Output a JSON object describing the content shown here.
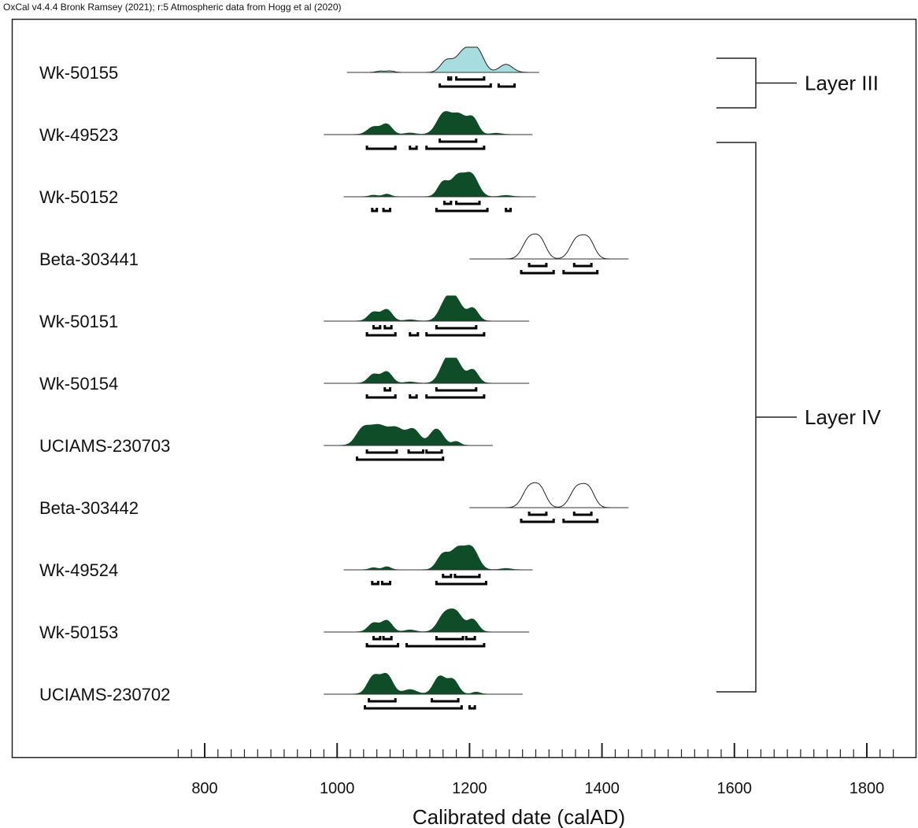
{
  "header": "OxCal v4.4.4 Bronk Ramsey (2021); r:5 Atmospheric data from Hogg et al (2020)",
  "chart_data": {
    "type": "area",
    "xlabel": "Calibrated date (calAD)",
    "xlim": [
      695,
      1875
    ],
    "xticks": [
      800,
      1000,
      1200,
      1400,
      1600,
      1800
    ],
    "minor_tick_step": 20,
    "samples": [
      {
        "name": "Wk-50155",
        "fill": "#a8dde0",
        "outline": "#222222",
        "range": [
          1015,
          1305
        ],
        "peaks": [
          [
            1065,
            0.05,
            6
          ],
          [
            1080,
            0.06,
            6
          ],
          [
            1165,
            0.45,
            9
          ],
          [
            1192,
            0.85,
            12
          ],
          [
            1212,
            0.78,
            10
          ],
          [
            1255,
            0.32,
            10
          ]
        ],
        "brackets": [
          [
            [
              1168,
              1172
            ],
            [
              1180,
              1222
            ]
          ],
          [
            [
              1155,
              1232
            ],
            [
              1244,
              1268
            ]
          ]
        ]
      },
      {
        "name": "Wk-49523",
        "fill": "#0e4d27",
        "outline": "#0e4d27",
        "range": [
          980,
          1295
        ],
        "peaks": [
          [
            1055,
            0.3,
            9
          ],
          [
            1075,
            0.4,
            8
          ],
          [
            1110,
            0.06,
            8
          ],
          [
            1162,
            0.85,
            11
          ],
          [
            1185,
            0.72,
            10
          ],
          [
            1205,
            0.62,
            8
          ],
          [
            1240,
            0.05,
            8
          ]
        ],
        "brackets": [
          [
            [
              1155,
              1210
            ]
          ],
          [
            [
              1045,
              1088
            ],
            [
              1110,
              1120
            ],
            [
              1135,
              1222
            ]
          ]
        ]
      },
      {
        "name": "Wk-50152",
        "fill": "#0e4d27",
        "outline": "#0e4d27",
        "range": [
          1010,
          1300
        ],
        "peaks": [
          [
            1055,
            0.06,
            6
          ],
          [
            1075,
            0.1,
            6
          ],
          [
            1160,
            0.55,
            8
          ],
          [
            1182,
            0.8,
            10
          ],
          [
            1203,
            0.85,
            10
          ],
          [
            1255,
            0.05,
            8
          ]
        ],
        "brackets": [
          [
            [
              1162,
              1172
            ],
            [
              1180,
              1215
            ]
          ],
          [
            [
              1053,
              1060
            ],
            [
              1070,
              1080
            ],
            [
              1150,
              1227
            ],
            [
              1255,
              1262
            ]
          ]
        ]
      },
      {
        "name": "Beta-303441",
        "fill": "#ffffff",
        "outline": "#222222",
        "range": [
          1200,
          1440
        ],
        "peaks": [
          [
            1290,
            0.78,
            10
          ],
          [
            1307,
            0.7,
            9
          ],
          [
            1362,
            0.78,
            10
          ],
          [
            1380,
            0.72,
            9
          ]
        ],
        "brackets": [
          [
            [
              1290,
              1316
            ],
            [
              1358,
              1384
            ]
          ],
          [
            [
              1278,
              1327
            ],
            [
              1342,
              1393
            ]
          ]
        ]
      },
      {
        "name": "Wk-50151",
        "fill": "#0e4d27",
        "outline": "#0e4d27",
        "range": [
          980,
          1290
        ],
        "peaks": [
          [
            1055,
            0.35,
            8
          ],
          [
            1075,
            0.45,
            8
          ],
          [
            1110,
            0.05,
            8
          ],
          [
            1165,
            0.75,
            10
          ],
          [
            1180,
            0.72,
            10
          ],
          [
            1205,
            0.5,
            8
          ]
        ],
        "brackets": [
          [
            [
              1055,
              1065
            ],
            [
              1072,
              1082
            ],
            [
              1150,
              1210
            ]
          ],
          [
            [
              1045,
              1088
            ],
            [
              1110,
              1122
            ],
            [
              1135,
              1222
            ]
          ]
        ]
      },
      {
        "name": "Wk-50154",
        "fill": "#0e4d27",
        "outline": "#0e4d27",
        "range": [
          980,
          1290
        ],
        "peaks": [
          [
            1055,
            0.35,
            8
          ],
          [
            1075,
            0.45,
            8
          ],
          [
            1110,
            0.05,
            8
          ],
          [
            1165,
            0.8,
            10
          ],
          [
            1180,
            0.74,
            10
          ],
          [
            1205,
            0.52,
            8
          ]
        ],
        "brackets": [
          [
            [
              1072,
              1080
            ],
            [
              1150,
              1210
            ]
          ],
          [
            [
              1045,
              1088
            ],
            [
              1110,
              1120
            ],
            [
              1135,
              1222
            ]
          ]
        ]
      },
      {
        "name": "UCIAMS-230703",
        "fill": "#0e4d27",
        "outline": "#0e4d27",
        "range": [
          980,
          1235
        ],
        "peaks": [
          [
            1038,
            0.55,
            10
          ],
          [
            1062,
            0.78,
            14
          ],
          [
            1090,
            0.6,
            11
          ],
          [
            1115,
            0.62,
            10
          ],
          [
            1150,
            0.65,
            10
          ],
          [
            1180,
            0.15,
            6
          ]
        ],
        "brackets": [
          [
            [
              1045,
              1090
            ],
            [
              1108,
              1130
            ],
            [
              1135,
              1158
            ]
          ],
          [
            [
              1030,
              1160
            ]
          ]
        ]
      },
      {
        "name": "Beta-303442",
        "fill": "#ffffff",
        "outline": "#222222",
        "range": [
          1200,
          1440
        ],
        "peaks": [
          [
            1290,
            0.78,
            10
          ],
          [
            1307,
            0.7,
            9
          ],
          [
            1362,
            0.78,
            10
          ],
          [
            1380,
            0.72,
            9
          ]
        ],
        "brackets": [
          [
            [
              1290,
              1316
            ],
            [
              1358,
              1384
            ]
          ],
          [
            [
              1278,
              1327
            ],
            [
              1342,
              1393
            ]
          ]
        ]
      },
      {
        "name": "Wk-49524",
        "fill": "#0e4d27",
        "outline": "#0e4d27",
        "range": [
          1010,
          1295
        ],
        "peaks": [
          [
            1055,
            0.08,
            6
          ],
          [
            1075,
            0.12,
            6
          ],
          [
            1160,
            0.6,
            9
          ],
          [
            1182,
            0.8,
            10
          ],
          [
            1203,
            0.85,
            10
          ],
          [
            1255,
            0.05,
            8
          ]
        ],
        "brackets": [
          [
            [
              1160,
              1172
            ],
            [
              1178,
              1215
            ]
          ],
          [
            [
              1053,
              1062
            ],
            [
              1068,
              1080
            ],
            [
              1150,
              1225
            ]
          ]
        ]
      },
      {
        "name": "Wk-50153",
        "fill": "#0e4d27",
        "outline": "#0e4d27",
        "range": [
          980,
          1290
        ],
        "peaks": [
          [
            1055,
            0.35,
            8
          ],
          [
            1075,
            0.45,
            8
          ],
          [
            1110,
            0.08,
            8
          ],
          [
            1162,
            0.65,
            10
          ],
          [
            1180,
            0.72,
            10
          ],
          [
            1205,
            0.48,
            8
          ]
        ],
        "brackets": [
          [
            [
              1055,
              1065
            ],
            [
              1070,
              1082
            ],
            [
              1150,
              1190
            ],
            [
              1195,
              1208
            ]
          ],
          [
            [
              1045,
              1092
            ],
            [
              1105,
              1222
            ]
          ]
        ]
      },
      {
        "name": "UCIAMS-230702",
        "fill": "#0e4d27",
        "outline": "#0e4d27",
        "range": [
          980,
          1280
        ],
        "peaks": [
          [
            1055,
            0.7,
            9
          ],
          [
            1075,
            0.75,
            9
          ],
          [
            1110,
            0.18,
            10
          ],
          [
            1155,
            0.7,
            9
          ],
          [
            1175,
            0.55,
            8
          ],
          [
            1210,
            0.08,
            6
          ]
        ],
        "brackets": [
          [
            [
              1048,
              1088
            ],
            [
              1143,
              1183
            ]
          ],
          [
            [
              1042,
              1188
            ],
            [
              1200,
              1208
            ]
          ]
        ]
      }
    ],
    "groups": [
      {
        "label": "Layer III",
        "from": 0,
        "to": 0
      },
      {
        "label": "Layer IV",
        "from": 1,
        "to": 10
      }
    ]
  }
}
